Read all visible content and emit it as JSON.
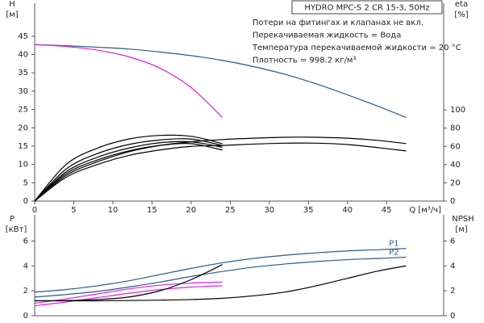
{
  "chart_data": [
    {
      "type": "line",
      "title": "HYDRO MPC-S 2 CR 15-3, 50Hz",
      "notes": [
        "Потери на фитингах и клапанах не вкл.",
        "Перекачиваемая жидкость = Вода",
        "Температура перекачиваемой жидкости = 20 °C",
        "Плотность = 998.2 кг/м³"
      ],
      "x_label": "Q [м³/ч]",
      "y_label": "H",
      "y_unit": "[м]",
      "y2_label": "eta",
      "y2_unit": "[%]",
      "x": [
        0,
        4,
        8,
        12,
        16,
        20,
        24,
        28,
        32,
        36,
        40,
        44,
        47.5
      ],
      "xlim": [
        0,
        52.3
      ],
      "xticks": [
        0,
        5,
        10,
        15,
        20,
        25,
        30,
        35,
        40,
        45
      ],
      "ylim": [
        0,
        54
      ],
      "yticks": [
        0,
        5,
        10,
        15,
        20,
        25,
        30,
        35,
        40,
        45
      ],
      "y2lim": [
        0,
        217
      ],
      "y2ticks": [
        0,
        20,
        40,
        60,
        80,
        100
      ],
      "series": [
        {
          "color": "#2b5a8a",
          "values": [
            42.7,
            42.4,
            42.0,
            41.5,
            40.7,
            39.7,
            38.4,
            36.7,
            34.6,
            32.0,
            29.0,
            25.8,
            22.8
          ]
        },
        {
          "color": "#e020e0",
          "values": [
            42.7,
            42.2,
            41.2,
            39.4,
            36.3,
            31.0,
            22.8,
            null,
            null,
            null,
            null,
            null,
            null
          ]
        },
        {
          "color": "#000000",
          "axis": "y2",
          "values": [
            0,
            26,
            40,
            50,
            56,
            60,
            61,
            62.5,
            63.5,
            63.5,
            62,
            58.5,
            55
          ]
        },
        {
          "color": "#000000",
          "axis": "y2",
          "values": [
            0,
            28,
            43,
            54,
            61,
            65,
            67.5,
            69,
            70,
            70,
            69,
            66.5,
            63
          ]
        },
        {
          "color": "#000000",
          "axis": "y2",
          "values": [
            0,
            30,
            45,
            55,
            61,
            63,
            56,
            null,
            null,
            null,
            null,
            null,
            null
          ]
        },
        {
          "color": "#000000",
          "axis": "y2",
          "values": [
            0,
            32,
            48,
            58,
            64,
            65,
            59,
            null,
            null,
            null,
            null,
            null,
            null
          ]
        },
        {
          "color": "#000000",
          "axis": "y2",
          "values": [
            0,
            35,
            52,
            62,
            67,
            68,
            61,
            null,
            null,
            null,
            null,
            null,
            null
          ]
        },
        {
          "color": "#000000",
          "axis": "y2",
          "values": [
            0,
            40,
            58,
            68,
            72,
            71,
            63,
            null,
            null,
            null,
            null,
            null,
            null
          ]
        }
      ]
    },
    {
      "type": "line",
      "y_label": "P",
      "y_unit": "[кВт]",
      "y2_label": "NPSH",
      "y2_unit": "[м]",
      "x": [
        0,
        4,
        8,
        12,
        16,
        20,
        24,
        28,
        32,
        36,
        40,
        44,
        47.5
      ],
      "xlim": [
        0,
        52.3
      ],
      "ylim": [
        0,
        8.1
      ],
      "yticks": [
        0,
        2,
        4,
        6
      ],
      "y2lim": [
        0,
        8.1
      ],
      "y2ticks": [
        0,
        2,
        4,
        6
      ],
      "series": [
        {
          "name": "P1",
          "color": "#2b5a8a",
          "values": [
            1.9,
            2.1,
            2.4,
            2.8,
            3.3,
            3.8,
            4.25,
            4.6,
            4.85,
            5.05,
            5.2,
            5.3,
            5.4
          ]
        },
        {
          "name": "P2",
          "color": "#2b5a8a",
          "values": [
            1.5,
            1.7,
            1.95,
            2.3,
            2.7,
            3.15,
            3.55,
            3.9,
            4.15,
            4.35,
            4.5,
            4.6,
            4.7
          ]
        },
        {
          "color": "#e020e0",
          "values": [
            1.0,
            1.35,
            1.75,
            2.15,
            2.45,
            2.62,
            2.7,
            null,
            null,
            null,
            null,
            null,
            null
          ]
        },
        {
          "color": "#e020e0",
          "values": [
            0.8,
            1.1,
            1.45,
            1.8,
            2.1,
            2.3,
            2.4,
            null,
            null,
            null,
            null,
            null,
            null
          ]
        },
        {
          "color": "#000000",
          "axis": "y2",
          "values": [
            1.2,
            1.2,
            1.2,
            1.22,
            1.25,
            1.3,
            1.4,
            1.6,
            1.9,
            2.4,
            3.0,
            3.6,
            4.0
          ]
        },
        {
          "color": "#000000",
          "axis": "y2",
          "values": [
            1.2,
            1.22,
            1.3,
            1.5,
            2.0,
            2.9,
            4.1,
            null,
            null,
            null,
            null,
            null,
            null
          ]
        }
      ]
    }
  ]
}
